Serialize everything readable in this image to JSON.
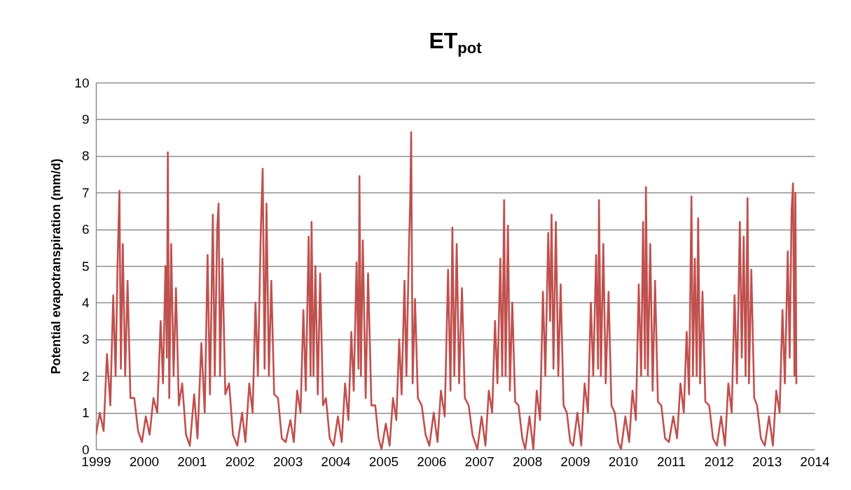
{
  "chart_data": {
    "type": "line",
    "title": "ET$_{pot}$",
    "ylabel": "Potential evapotranspiration (mm/d)",
    "xlim": [
      1999,
      2014
    ],
    "xticks": [
      1999,
      2000,
      2001,
      2002,
      2003,
      2004,
      2005,
      2006,
      2007,
      2008,
      2009,
      2010,
      2011,
      2012,
      2013,
      2014
    ],
    "ylim": [
      0,
      10
    ],
    "yticks": [
      0,
      1,
      2,
      3,
      4,
      5,
      6,
      7,
      8,
      9,
      10
    ],
    "grid": "y",
    "marker": "none",
    "line_style": "solid",
    "series": [
      {
        "color": "#c0504d",
        "x": [
          1999.0,
          1999.08,
          1999.16,
          1999.23,
          1999.3,
          1999.36,
          1999.41,
          1999.45,
          1999.49,
          1999.52,
          1999.56,
          1999.61,
          1999.66,
          1999.72,
          1999.8,
          1999.88,
          1999.96,
          2000.04,
          2000.12,
          2000.2,
          2000.28,
          2000.35,
          2000.4,
          2000.45,
          2000.48,
          2000.5,
          2000.53,
          2000.57,
          2000.62,
          2000.67,
          2000.73,
          2000.8,
          2000.88,
          2000.96,
          2001.05,
          2001.12,
          2001.2,
          2001.27,
          2001.33,
          2001.38,
          2001.44,
          2001.48,
          2001.53,
          2001.56,
          2001.59,
          2001.64,
          2001.7,
          2001.78,
          2001.86,
          2001.95,
          2002.05,
          2002.12,
          2002.2,
          2002.27,
          2002.33,
          2002.38,
          2002.44,
          2002.48,
          2002.52,
          2002.56,
          2002.61,
          2002.66,
          2002.72,
          2002.8,
          2002.88,
          2002.96,
          2003.06,
          2003.13,
          2003.2,
          2003.27,
          2003.33,
          2003.38,
          2003.44,
          2003.48,
          2003.5,
          2003.54,
          2003.58,
          2003.63,
          2003.68,
          2003.74,
          2003.8,
          2003.88,
          2003.96,
          2004.05,
          2004.13,
          2004.2,
          2004.27,
          2004.33,
          2004.38,
          2004.44,
          2004.48,
          2004.5,
          2004.53,
          2004.57,
          2004.63,
          2004.68,
          2004.75,
          2004.83,
          2004.9,
          2004.96,
          2005.05,
          2005.13,
          2005.2,
          2005.27,
          2005.33,
          2005.38,
          2005.44,
          2005.48,
          2005.53,
          2005.56,
          2005.58,
          2005.61,
          2005.66,
          2005.72,
          2005.8,
          2005.88,
          2005.96,
          2006.05,
          2006.13,
          2006.2,
          2006.28,
          2006.35,
          2006.4,
          2006.44,
          2006.48,
          2006.53,
          2006.58,
          2006.64,
          2006.7,
          2006.78,
          2006.86,
          2006.96,
          2007.05,
          2007.13,
          2007.2,
          2007.27,
          2007.33,
          2007.38,
          2007.44,
          2007.48,
          2007.52,
          2007.55,
          2007.6,
          2007.64,
          2007.69,
          2007.75,
          2007.82,
          2007.9,
          2007.96,
          2008.05,
          2008.13,
          2008.2,
          2008.27,
          2008.33,
          2008.38,
          2008.44,
          2008.48,
          2008.51,
          2008.55,
          2008.6,
          2008.65,
          2008.7,
          2008.76,
          2008.83,
          2008.9,
          2008.96,
          2009.05,
          2009.13,
          2009.2,
          2009.27,
          2009.33,
          2009.38,
          2009.44,
          2009.48,
          2009.5,
          2009.54,
          2009.59,
          2009.64,
          2009.7,
          2009.76,
          2009.83,
          2009.9,
          2009.96,
          2010.05,
          2010.13,
          2010.2,
          2010.27,
          2010.33,
          2010.38,
          2010.42,
          2010.46,
          2010.48,
          2010.52,
          2010.57,
          2010.62,
          2010.67,
          2010.73,
          2010.8,
          2010.88,
          2010.96,
          2011.05,
          2011.13,
          2011.2,
          2011.27,
          2011.33,
          2011.38,
          2011.43,
          2011.46,
          2011.5,
          2011.54,
          2011.57,
          2011.61,
          2011.66,
          2011.72,
          2011.8,
          2011.88,
          2011.96,
          2012.05,
          2012.13,
          2012.2,
          2012.27,
          2012.33,
          2012.38,
          2012.44,
          2012.48,
          2012.52,
          2012.56,
          2012.6,
          2012.63,
          2012.68,
          2012.74,
          2012.8,
          2012.88,
          2012.96,
          2013.05,
          2013.13,
          2013.2,
          2013.27,
          2013.33,
          2013.38,
          2013.44,
          2013.48,
          2013.52,
          2013.55,
          2013.58,
          2013.6,
          2013.62
        ],
        "values": [
          0.4,
          1.0,
          0.5,
          2.6,
          1.2,
          4.2,
          2.0,
          5.0,
          7.05,
          2.2,
          5.6,
          2.0,
          4.6,
          1.4,
          1.4,
          0.5,
          0.2,
          0.9,
          0.4,
          1.4,
          1.0,
          3.5,
          1.8,
          5.0,
          2.5,
          8.1,
          1.4,
          5.6,
          2.0,
          4.4,
          1.2,
          1.8,
          0.4,
          0.1,
          1.5,
          0.3,
          2.9,
          1.0,
          5.3,
          1.5,
          6.4,
          2.0,
          6.0,
          6.7,
          2.0,
          5.2,
          1.5,
          1.8,
          0.4,
          0.1,
          1.0,
          0.2,
          1.8,
          1.0,
          4.0,
          2.0,
          5.9,
          7.65,
          2.2,
          6.7,
          2.0,
          4.6,
          1.5,
          1.4,
          0.3,
          0.2,
          0.8,
          0.2,
          1.6,
          1.0,
          3.8,
          1.6,
          5.8,
          2.0,
          6.2,
          2.0,
          5.0,
          1.5,
          4.8,
          1.2,
          1.4,
          0.3,
          0.1,
          0.9,
          0.2,
          1.8,
          0.8,
          3.2,
          1.6,
          5.1,
          2.2,
          7.45,
          2.0,
          5.7,
          1.4,
          4.8,
          1.2,
          1.2,
          0.3,
          0.0,
          0.7,
          0.1,
          1.4,
          0.8,
          3.0,
          1.5,
          4.6,
          2.0,
          5.3,
          6.8,
          8.65,
          1.8,
          4.1,
          1.4,
          1.2,
          0.4,
          0.1,
          1.0,
          0.2,
          1.6,
          0.9,
          4.9,
          1.6,
          6.05,
          2.0,
          5.6,
          1.8,
          4.4,
          1.4,
          1.2,
          0.4,
          0.0,
          0.9,
          0.1,
          1.6,
          1.0,
          3.5,
          1.8,
          5.2,
          2.0,
          6.8,
          2.0,
          6.1,
          1.6,
          4.0,
          1.3,
          1.2,
          0.3,
          0.0,
          0.9,
          0.0,
          1.6,
          0.8,
          4.3,
          2.0,
          5.9,
          3.5,
          6.4,
          2.2,
          6.2,
          2.0,
          4.5,
          1.2,
          1.0,
          0.2,
          0.1,
          1.0,
          0.1,
          1.8,
          1.0,
          4.0,
          2.0,
          5.3,
          2.2,
          6.8,
          2.0,
          5.6,
          1.8,
          4.3,
          1.2,
          1.0,
          0.2,
          0.0,
          0.9,
          0.2,
          1.6,
          0.8,
          4.5,
          2.0,
          6.2,
          2.2,
          7.15,
          2.0,
          5.6,
          1.6,
          4.6,
          1.3,
          1.2,
          0.3,
          0.2,
          0.9,
          0.3,
          1.8,
          1.0,
          3.2,
          1.5,
          6.9,
          2.0,
          5.2,
          2.0,
          6.3,
          1.8,
          4.3,
          1.3,
          1.2,
          0.3,
          0.1,
          0.9,
          0.1,
          1.8,
          1.0,
          4.2,
          1.8,
          6.2,
          2.5,
          5.8,
          2.0,
          6.85,
          1.8,
          4.9,
          1.4,
          1.2,
          0.3,
          0.1,
          0.9,
          0.1,
          1.6,
          1.0,
          3.8,
          1.8,
          5.4,
          2.5,
          6.5,
          7.25,
          2.0,
          7.0,
          1.8
        ]
      }
    ]
  }
}
